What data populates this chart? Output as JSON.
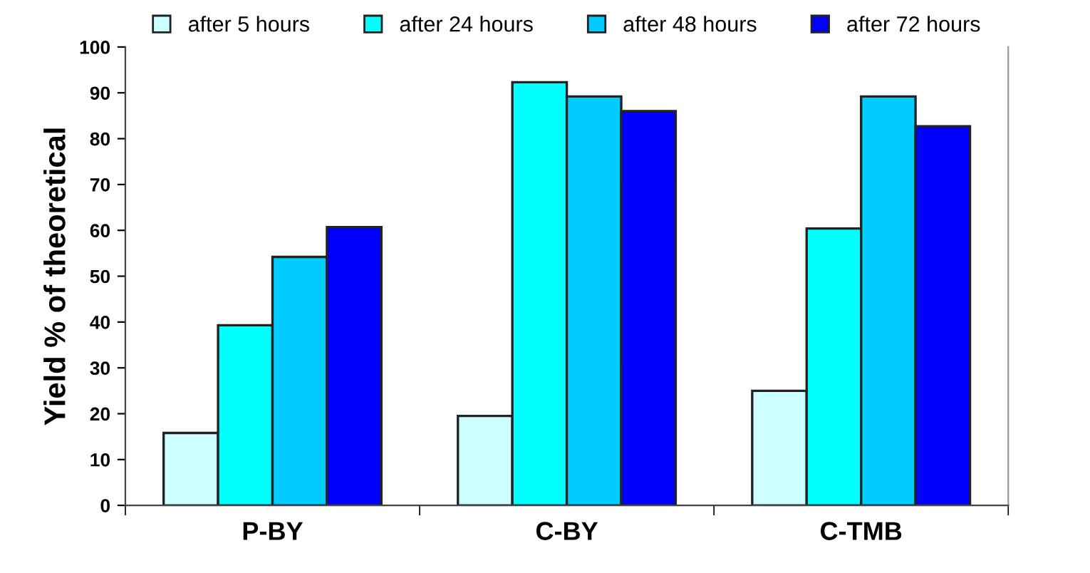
{
  "chart_data": {
    "type": "bar",
    "ylabel": "Yield % of theoretical",
    "categories": [
      "P-BY",
      "C-BY",
      "C-TMB"
    ],
    "series": [
      {
        "name": "after 5 hours",
        "color": "#ccffff",
        "values": [
          15.8,
          19.5,
          25
        ]
      },
      {
        "name": "after 24 hours",
        "color": "#00ffff",
        "values": [
          39.3,
          92.3,
          60.4
        ]
      },
      {
        "name": "after 48 hours",
        "color": "#00ccff",
        "values": [
          54.2,
          89.2,
          89.2
        ]
      },
      {
        "name": "after 72 hours",
        "color": "#0000ff",
        "values": [
          60.7,
          86,
          82.7
        ]
      }
    ],
    "ylim": [
      0,
      100
    ],
    "yticks": [
      0,
      10,
      20,
      30,
      40,
      50,
      60,
      70,
      80,
      90,
      100
    ],
    "grid": false,
    "legend": "top"
  }
}
